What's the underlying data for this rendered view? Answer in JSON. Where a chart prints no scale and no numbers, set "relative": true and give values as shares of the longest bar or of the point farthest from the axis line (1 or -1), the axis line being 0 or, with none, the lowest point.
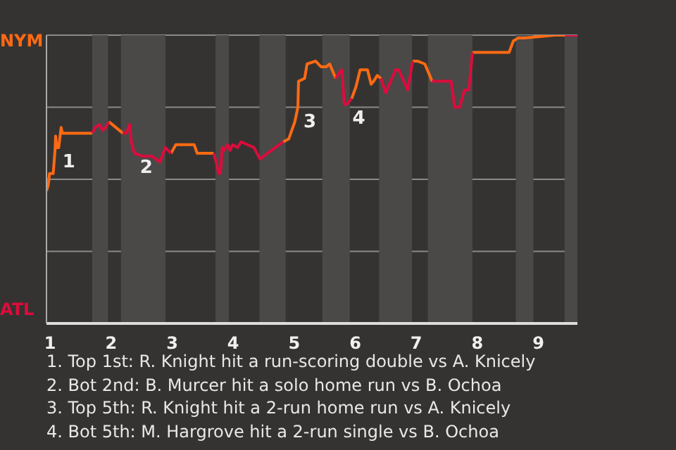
{
  "chart_data": {
    "type": "line",
    "relative": true,
    "xlim": [
      0.94,
      9.64
    ],
    "xticks": [
      1,
      2,
      3,
      4,
      5,
      6,
      7,
      8,
      9
    ],
    "grid": "y",
    "legend": false,
    "marker": "none",
    "line_style": "solid",
    "series": [
      {
        "color": "#ff6a13",
        "x": [
          0.94,
          0.97,
          0.99,
          1.05,
          1.08,
          1.09,
          1.11,
          1.14,
          1.18,
          1.2,
          1.69,
          null,
          1.96,
          2.02,
          2.19,
          null,
          2.98,
          3.06,
          3.36,
          3.41,
          3.68,
          null,
          4.82,
          4.91,
          5.01,
          5.06,
          5.07,
          5.17,
          5.21,
          5.35,
          5.44,
          5.52,
          5.58,
          5.68,
          null,
          5.94,
          6.01,
          6.08,
          6.2,
          6.26,
          6.3,
          6.36,
          6.42,
          null,
          6.94,
          7.02,
          7.14,
          7.26,
          null,
          7.92,
          8.0,
          8.18,
          8.33,
          8.52,
          8.59,
          8.67,
          8.78,
          9.26,
          9.44
        ],
        "values": [
          0.46,
          0.48,
          0.52,
          0.52,
          0.6,
          0.65,
          0.61,
          0.61,
          0.68,
          0.66,
          0.66,
          null,
          0.7,
          0.69,
          0.66,
          null,
          0.59,
          0.62,
          0.62,
          0.59,
          0.59,
          null,
          0.63,
          0.64,
          0.7,
          0.75,
          0.84,
          0.85,
          0.9,
          0.91,
          0.89,
          0.89,
          0.9,
          0.85,
          null,
          0.78,
          0.82,
          0.88,
          0.88,
          0.83,
          0.84,
          0.86,
          0.85,
          null,
          0.91,
          0.91,
          0.9,
          0.84,
          null,
          0.94,
          0.94,
          0.94,
          0.94,
          0.94,
          0.98,
          0.99,
          0.99,
          1,
          1
        ]
      },
      {
        "color": "#dc0c3c",
        "x": [
          1.69,
          1.74,
          1.81,
          1.86,
          1.91,
          1.96,
          null,
          2.19,
          2.25,
          2.3,
          2.33,
          2.38,
          2.52,
          2.67,
          2.8,
          2.89,
          2.98,
          null,
          3.68,
          3.72,
          3.76,
          3.79,
          3.82,
          3.85,
          3.91,
          3.95,
          3.99,
          4.07,
          4.13,
          4.34,
          4.44,
          4.56,
          4.82,
          null,
          5.68,
          5.74,
          5.78,
          5.82,
          5.86,
          5.94,
          null,
          6.42,
          6.5,
          6.66,
          6.71,
          6.86,
          6.94,
          null,
          7.26,
          7.57,
          7.63,
          7.71,
          7.79,
          7.86,
          7.92,
          null,
          9.44,
          9.64
        ],
        "values": [
          0.66,
          0.68,
          0.69,
          0.67,
          0.68,
          0.7,
          null,
          0.66,
          0.66,
          0.69,
          0.63,
          0.59,
          0.58,
          0.58,
          0.56,
          0.61,
          0.59,
          null,
          0.59,
          0.56,
          0.52,
          0.52,
          0.61,
          0.6,
          0.62,
          0.6,
          0.62,
          0.61,
          0.63,
          0.61,
          0.57,
          0.59,
          0.63,
          null,
          0.85,
          0.87,
          0.88,
          0.76,
          0.76,
          0.78,
          null,
          0.85,
          0.8,
          0.88,
          0.88,
          0.81,
          0.91,
          null,
          0.84,
          0.84,
          0.75,
          0.75,
          0.81,
          0.81,
          0.94,
          null,
          1,
          1
        ]
      }
    ],
    "bands": [
      {
        "axis": "x",
        "from": 1.69,
        "to": 1.95,
        "color": "#4a4948"
      },
      {
        "axis": "x",
        "from": 2.16,
        "to": 2.89,
        "color": "#4a4948"
      },
      {
        "axis": "x",
        "from": 3.71,
        "to": 3.93,
        "color": "#4a4948"
      },
      {
        "axis": "x",
        "from": 4.43,
        "to": 4.86,
        "color": "#4a4948"
      },
      {
        "axis": "x",
        "from": 5.46,
        "to": 5.91,
        "color": "#4a4948"
      },
      {
        "axis": "x",
        "from": 6.39,
        "to": 6.93,
        "color": "#4a4948"
      },
      {
        "axis": "x",
        "from": 7.19,
        "to": 7.92,
        "color": "#4a4948"
      },
      {
        "axis": "x",
        "from": 8.63,
        "to": 8.92,
        "color": "#4a4948"
      },
      {
        "axis": "x",
        "from": 9.43,
        "to": 9.64,
        "color": "#4a4948"
      }
    ],
    "annotations": [
      {
        "text": "1",
        "x": 1.11,
        "y": 0.61
      },
      {
        "text": "2",
        "x": 2.38,
        "y": 0.59
      },
      {
        "text": "3",
        "x": 5.06,
        "y": 0.75
      },
      {
        "text": "4",
        "x": 5.86,
        "y": 0.76
      },
      "NYM",
      "ATL",
      "1. Top 1st: R. Knight hit a run-scoring double vs A. Knicely",
      "2. Bot 2nd: B. Murcer hit a solo home run vs B. Ochoa",
      "3. Top 5th: R. Knight hit a 2-run home run vs A. Knicely",
      "4. Bot 5th: M. Hargrove hit a 2-run single vs B. Ochoa"
    ]
  }
}
